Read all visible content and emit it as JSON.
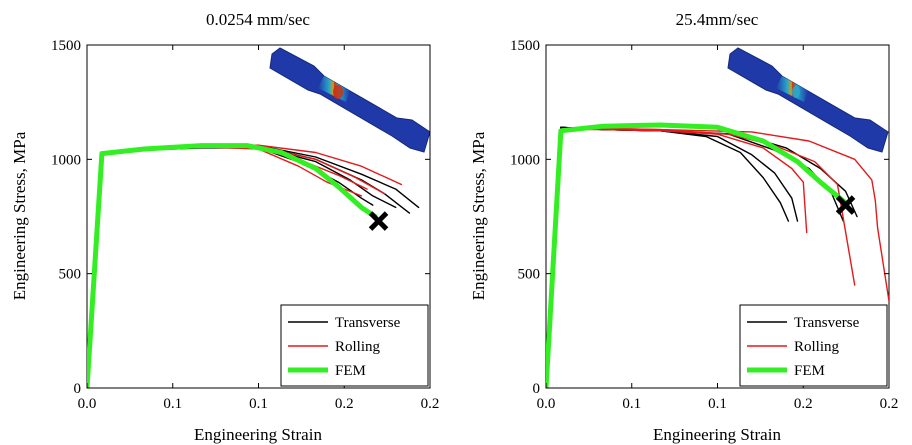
{
  "figure": {
    "panels": [
      {
        "title": "0.0254 mm/sec",
        "xlabel": "Engineering Strain",
        "ylabel": "Engineering Stress, MPa",
        "xticks": [
          "0.0",
          "0.1",
          "0.1",
          "0.2",
          "0.2"
        ],
        "yticks": [
          "0",
          "500",
          "1000",
          "1500"
        ],
        "legend": [
          "Transverse",
          "Rolling",
          "FEM"
        ]
      },
      {
        "title": "25.4mm/sec",
        "xlabel": "Engineering Strain",
        "ylabel": "Engineering Stress, MPa",
        "xticks": [
          "0.0",
          "0.1",
          "0.1",
          "0.2",
          "0.2"
        ],
        "yticks": [
          "0",
          "500",
          "1000",
          "1500"
        ],
        "legend": [
          "Transverse",
          "Rolling",
          "FEM"
        ]
      }
    ]
  },
  "colors": {
    "transverse": "#000000",
    "rolling": "#e31a1c",
    "fem": "#33ee22",
    "specimen": "#1f3aa8",
    "marker": "#000000"
  },
  "chart_data": [
    {
      "type": "line",
      "title": "0.0254 mm/sec",
      "xlabel": "Engineering Strain",
      "ylabel": "Engineering Stress, MPa",
      "xlim": [
        0,
        0.3
      ],
      "ylim": [
        0,
        1500
      ],
      "xtick_values": [
        0,
        0.075,
        0.15,
        0.225,
        0.3
      ],
      "ytick_values": [
        0,
        500,
        1000,
        1500
      ],
      "legend_position": "bottom-right",
      "grid": false,
      "series": [
        {
          "name": "Transverse",
          "role": "transverse",
          "points": [
            [
              0,
              0
            ],
            [
              0.012,
              1030
            ],
            [
              0.05,
              1040
            ],
            [
              0.1,
              1055
            ],
            [
              0.15,
              1060
            ],
            [
              0.2,
              1010
            ],
            [
              0.24,
              935
            ],
            [
              0.27,
              870
            ],
            [
              0.29,
              790
            ]
          ]
        },
        {
          "name": "",
          "role": "transverse",
          "points": [
            [
              0,
              0
            ],
            [
              0.012,
              1030
            ],
            [
              0.05,
              1040
            ],
            [
              0.1,
              1055
            ],
            [
              0.15,
              1058
            ],
            [
              0.2,
              1000
            ],
            [
              0.24,
              910
            ],
            [
              0.26,
              850
            ],
            [
              0.282,
              765
            ]
          ]
        },
        {
          "name": "",
          "role": "transverse",
          "points": [
            [
              0,
              0
            ],
            [
              0.012,
              1030
            ],
            [
              0.05,
              1040
            ],
            [
              0.1,
              1052
            ],
            [
              0.15,
              1055
            ],
            [
              0.2,
              990
            ],
            [
              0.23,
              910
            ],
            [
              0.25,
              840
            ],
            [
              0.27,
              790
            ]
          ]
        },
        {
          "name": "",
          "role": "transverse",
          "points": [
            [
              0,
              0
            ],
            [
              0.012,
              1030
            ],
            [
              0.05,
              1040
            ],
            [
              0.1,
              1050
            ],
            [
              0.15,
              1050
            ],
            [
              0.19,
              980
            ],
            [
              0.22,
              900
            ],
            [
              0.24,
              830
            ],
            [
              0.25,
              800
            ]
          ]
        },
        {
          "name": "Rolling",
          "role": "rolling",
          "points": [
            [
              0,
              0
            ],
            [
              0.012,
              1020
            ],
            [
              0.05,
              1045
            ],
            [
              0.1,
              1060
            ],
            [
              0.15,
              1062
            ],
            [
              0.2,
              1030
            ],
            [
              0.24,
              970
            ],
            [
              0.275,
              890
            ]
          ]
        },
        {
          "name": "",
          "role": "rolling",
          "points": [
            [
              0,
              0
            ],
            [
              0.012,
              1020
            ],
            [
              0.05,
              1045
            ],
            [
              0.1,
              1058
            ],
            [
              0.15,
              1055
            ],
            [
              0.2,
              1000
            ],
            [
              0.235,
              920
            ],
            [
              0.26,
              850
            ]
          ]
        },
        {
          "name": "",
          "role": "rolling",
          "points": [
            [
              0,
              0
            ],
            [
              0.012,
              1020
            ],
            [
              0.05,
              1045
            ],
            [
              0.1,
              1055
            ],
            [
              0.15,
              1050
            ],
            [
              0.19,
              990
            ],
            [
              0.22,
              930
            ],
            [
              0.245,
              870
            ]
          ]
        },
        {
          "name": "",
          "role": "rolling",
          "points": [
            [
              0,
              0
            ],
            [
              0.012,
              1020
            ],
            [
              0.05,
              1045
            ],
            [
              0.1,
              1055
            ],
            [
              0.15,
              1045
            ],
            [
              0.185,
              970
            ],
            [
              0.21,
              900
            ],
            [
              0.24,
              840
            ]
          ]
        },
        {
          "name": "FEM",
          "role": "fem",
          "points": [
            [
              0,
              0
            ],
            [
              0.013,
              1025
            ],
            [
              0.05,
              1045
            ],
            [
              0.1,
              1060
            ],
            [
              0.14,
              1060
            ],
            [
              0.17,
              1030
            ],
            [
              0.2,
              960
            ],
            [
              0.22,
              880
            ],
            [
              0.24,
              790
            ],
            [
              0.252,
              750
            ]
          ]
        }
      ],
      "markers": [
        {
          "x": 0.255,
          "y": 730,
          "symbol": "x"
        }
      ]
    },
    {
      "type": "line",
      "title": "25.4mm/sec",
      "xlabel": "Engineering Strain",
      "ylabel": "Engineering Stress, MPa",
      "xlim": [
        0,
        0.3
      ],
      "ylim": [
        0,
        1500
      ],
      "xtick_values": [
        0,
        0.075,
        0.15,
        0.225,
        0.3
      ],
      "ytick_values": [
        0,
        500,
        1000,
        1500
      ],
      "legend_position": "bottom-right",
      "grid": false,
      "series": [
        {
          "name": "Transverse",
          "role": "transverse",
          "points": [
            [
              0,
              0
            ],
            [
              0.013,
              1140
            ],
            [
              0.05,
              1130
            ],
            [
              0.1,
              1125
            ],
            [
              0.14,
              1100
            ],
            [
              0.17,
              1030
            ],
            [
              0.19,
              920
            ],
            [
              0.205,
              810
            ],
            [
              0.212,
              730
            ]
          ]
        },
        {
          "name": "",
          "role": "transverse",
          "points": [
            [
              0,
              0
            ],
            [
              0.013,
              1140
            ],
            [
              0.05,
              1130
            ],
            [
              0.1,
              1125
            ],
            [
              0.15,
              1100
            ],
            [
              0.18,
              1020
            ],
            [
              0.2,
              940
            ],
            [
              0.215,
              830
            ],
            [
              0.22,
              730
            ]
          ]
        },
        {
          "name": "",
          "role": "transverse",
          "points": [
            [
              0,
              0
            ],
            [
              0.013,
              1140
            ],
            [
              0.05,
              1130
            ],
            [
              0.1,
              1125
            ],
            [
              0.16,
              1110
            ],
            [
              0.2,
              1040
            ],
            [
              0.23,
              960
            ],
            [
              0.25,
              850
            ],
            [
              0.26,
              730
            ]
          ]
        },
        {
          "name": "",
          "role": "transverse",
          "points": [
            [
              0,
              0
            ],
            [
              0.013,
              1140
            ],
            [
              0.05,
              1130
            ],
            [
              0.1,
              1125
            ],
            [
              0.17,
              1110
            ],
            [
              0.21,
              1050
            ],
            [
              0.24,
              960
            ],
            [
              0.262,
              860
            ],
            [
              0.272,
              750
            ]
          ]
        },
        {
          "name": "Rolling",
          "role": "rolling",
          "points": [
            [
              0,
              0
            ],
            [
              0.013,
              1130
            ],
            [
              0.05,
              1130
            ],
            [
              0.1,
              1125
            ],
            [
              0.15,
              1110
            ],
            [
              0.19,
              1050
            ],
            [
              0.215,
              960
            ],
            [
              0.225,
              900
            ],
            [
              0.228,
              680
            ]
          ]
        },
        {
          "name": "",
          "role": "rolling",
          "points": [
            [
              0,
              0
            ],
            [
              0.013,
              1130
            ],
            [
              0.05,
              1135
            ],
            [
              0.1,
              1130
            ],
            [
              0.16,
              1110
            ],
            [
              0.2,
              1060
            ],
            [
              0.235,
              990
            ],
            [
              0.255,
              890
            ],
            [
              0.258,
              800
            ],
            [
              0.27,
              450
            ]
          ]
        },
        {
          "name": "",
          "role": "rolling",
          "points": [
            [
              0,
              0
            ],
            [
              0.013,
              1130
            ],
            [
              0.05,
              1135
            ],
            [
              0.1,
              1130
            ],
            [
              0.18,
              1120
            ],
            [
              0.23,
              1080
            ],
            [
              0.27,
              1000
            ],
            [
              0.285,
              910
            ],
            [
              0.288,
              820
            ],
            [
              0.29,
              700
            ],
            [
              0.3,
              380
            ]
          ]
        },
        {
          "name": "FEM",
          "role": "fem",
          "points": [
            [
              0,
              0
            ],
            [
              0.013,
              1125
            ],
            [
              0.05,
              1145
            ],
            [
              0.1,
              1150
            ],
            [
              0.15,
              1140
            ],
            [
              0.19,
              1080
            ],
            [
              0.22,
              990
            ],
            [
              0.24,
              900
            ],
            [
              0.262,
              810
            ]
          ]
        }
      ],
      "markers": [
        {
          "x": 0.262,
          "y": 800,
          "symbol": "x"
        }
      ]
    }
  ]
}
